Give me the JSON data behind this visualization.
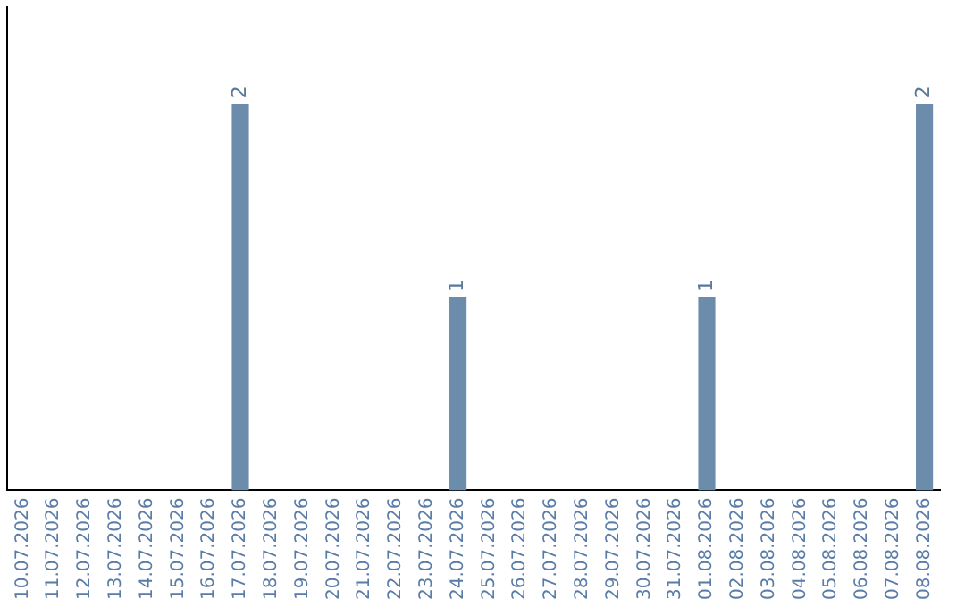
{
  "chart_data": {
    "type": "bar",
    "categories": [
      "10.07.2026",
      "11.07.2026",
      "12.07.2026",
      "13.07.2026",
      "14.07.2026",
      "15.07.2026",
      "16.07.2026",
      "17.07.2026",
      "18.07.2026",
      "19.07.2026",
      "20.07.2026",
      "21.07.2026",
      "22.07.2026",
      "23.07.2026",
      "24.07.2026",
      "25.07.2026",
      "26.07.2026",
      "27.07.2026",
      "28.07.2026",
      "29.07.2026",
      "30.07.2026",
      "31.07.2026",
      "01.08.2026",
      "02.08.2026",
      "03.08.2026",
      "04.08.2026",
      "05.08.2026",
      "06.08.2026",
      "07.08.2026",
      "08.08.2026"
    ],
    "values": [
      0,
      0,
      0,
      0,
      0,
      0,
      0,
      2,
      0,
      0,
      0,
      0,
      0,
      0,
      1,
      0,
      0,
      0,
      0,
      0,
      0,
      0,
      1,
      0,
      0,
      0,
      0,
      0,
      0,
      2
    ],
    "value_labels": [
      null,
      null,
      null,
      null,
      null,
      null,
      null,
      "2",
      null,
      null,
      null,
      null,
      null,
      null,
      "1",
      null,
      null,
      null,
      null,
      null,
      null,
      null,
      "1",
      null,
      null,
      null,
      null,
      null,
      null,
      "2"
    ],
    "color": "#6b8cab",
    "grid": false,
    "legend": false,
    "tick_labels": "x"
  }
}
